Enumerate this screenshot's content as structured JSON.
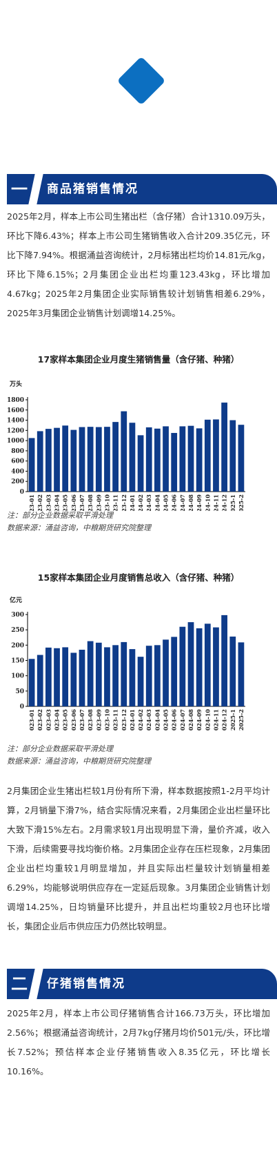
{
  "section1": {
    "number": "一",
    "title": "商品猪销售情况",
    "paragraph": "2025年2月，样本上市公司生猪出栏（含仔猪）合计1310.09万头，环比下降6.43%；样本上市公司生猪销售收入合计209.35亿元，环比下降7.94%。根据涌益咨询统计，2月标猪出栏均价14.81元/kg，环比下降6.15%；2月集团企业出栏均重123.43kg，环比增加4.67kg；2025年2月集团企业实际销售较计划销售相差6.29%，2025年3月集团企业销售计划调增14.25%。"
  },
  "chart1": {
    "title": "17家样本集团企业月度生猪销售量（含仔猪、种猪）",
    "unit": "万头",
    "note": "注：部分企业数据采取平滑处理",
    "source": "数据来源：涌益咨询，中粮期货研究院整理"
  },
  "chart2": {
    "title": "15家样本集团企业月度销售总收入（含仔猪、种猪）",
    "unit": "亿元",
    "note": "注：部分企业数据采取平滑处理",
    "source": "数据来源：涌益咨询，中粮期货研究院整理"
  },
  "section1b": {
    "paragraph": "2月集团企业生猪出栏较1月份有所下滑，样本数据按照1-2月平均计算，2月销量下滑7%，结合实际情况来看，2月集团企业出栏量环比大致下滑15%左右。2月需求较1月出现明显下滑，量价齐减，收入下滑，后续需要寻找均衡价格。2月集团企业存在压栏现象，2月集团企业出栏均重较1月明显增加，并且实际出栏量较计划销量相差6.29%，均能够说明供应存在一定延后现象。3月集团企业销售计划调增14.25%，日均销量环比提升，并且出栏均重较2月也环比增长，集团企业后市供应压力仍然比较明显。"
  },
  "section2": {
    "number": "二",
    "title": "仔猪销售情况",
    "paragraph": "2025年2月，样本上市公司仔猪销售合计166.73万头，环比增加2.56%；根据涌益咨询统计，2月7kg仔猪月均价501元/头，环比增长7.52%；预估样本企业仔猪销售收入8.35亿元，环比增长10.16%。"
  },
  "colors": {
    "bar": "#0e3b8a",
    "header": "#0e3b8a",
    "diamond": "#0c6fc1"
  },
  "chart_data": [
    {
      "type": "bar",
      "title": "17家样本集团企业月度生猪销售量（含仔猪、种猪）",
      "ylabel": "万头",
      "ylim": [
        0,
        1800
      ],
      "yticks": [
        0,
        200,
        400,
        600,
        800,
        1000,
        1200,
        1400,
        1600,
        1800
      ],
      "categories": [
        "2023-01",
        "2023-02",
        "2023-03",
        "2023-04",
        "2023-05",
        "2023-06",
        "2023-07",
        "2023-08",
        "2023-09",
        "2023-10",
        "2023-11",
        "2023-12",
        "2024-01",
        "2024-02",
        "2024-03",
        "2024-04",
        "2024-05",
        "2024-06",
        "2024-07",
        "2024-08",
        "2024-09",
        "2024-10",
        "2024-11",
        "2024-12",
        "2025-1",
        "2025-2"
      ],
      "values": [
        1050,
        1185,
        1230,
        1250,
        1295,
        1210,
        1265,
        1270,
        1265,
        1270,
        1365,
        1575,
        1350,
        1105,
        1260,
        1235,
        1280,
        1150,
        1280,
        1290,
        1240,
        1410,
        1415,
        1745,
        1400,
        1310
      ]
    },
    {
      "type": "bar",
      "title": "15家样本集团企业月度销售总收入（含仔猪、种猪）",
      "ylabel": "亿元",
      "ylim": [
        0,
        300
      ],
      "yticks": [
        0,
        50,
        100,
        150,
        200,
        250,
        300
      ],
      "categories": [
        "2023-01",
        "2023-02",
        "2023-03",
        "2023-04",
        "2023-05",
        "2023-06",
        "2023-07",
        "2023-08",
        "2023-09",
        "2023-10",
        "2023-11",
        "2023-12",
        "2024-01",
        "2024-02",
        "2024-03",
        "2024-04",
        "2024-05",
        "2024-06",
        "2024-07",
        "2024-08",
        "2024-09",
        "2024-10",
        "2024-11",
        "2024-12",
        "2025-1",
        "2025-2"
      ],
      "values": [
        155,
        168,
        192,
        190,
        193,
        175,
        185,
        213,
        208,
        193,
        200,
        210,
        187,
        162,
        198,
        200,
        218,
        227,
        260,
        275,
        255,
        270,
        258,
        298,
        228,
        209
      ]
    }
  ]
}
